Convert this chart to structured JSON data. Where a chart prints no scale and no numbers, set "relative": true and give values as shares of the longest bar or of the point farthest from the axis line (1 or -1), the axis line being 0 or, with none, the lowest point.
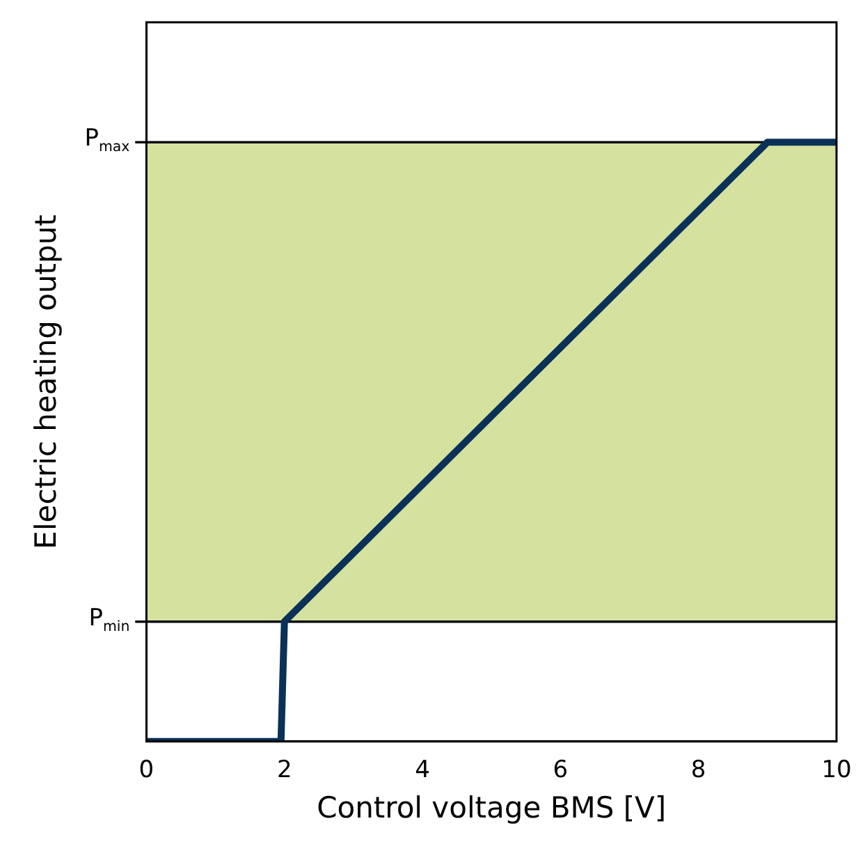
{
  "chart_data": {
    "type": "line",
    "xlabel": "Control voltage BMS [V]",
    "ylabel": "Electric heating output",
    "relative": true,
    "x": [
      0,
      1.95,
      2,
      9,
      10
    ],
    "series": [
      {
        "color": "#0a3158",
        "values": [
          0,
          0,
          0.2,
          1,
          1
        ]
      }
    ],
    "xlim": [
      0,
      10
    ],
    "xticks": [
      0,
      2,
      4,
      6,
      8,
      10
    ],
    "ref_lines": [
      {
        "axis": "y",
        "value": 0.2,
        "label": "P$_{min}$",
        "color": "#000000"
      },
      {
        "axis": "y",
        "value": 1,
        "label": "P$_{max}$",
        "color": "#000000"
      }
    ],
    "bands": [
      {
        "axis": "y",
        "from": 0.2,
        "to": 1,
        "color": "#d5e29f"
      }
    ],
    "grid": false,
    "legend": false,
    "marker": "none",
    "line_style": "solid"
  }
}
